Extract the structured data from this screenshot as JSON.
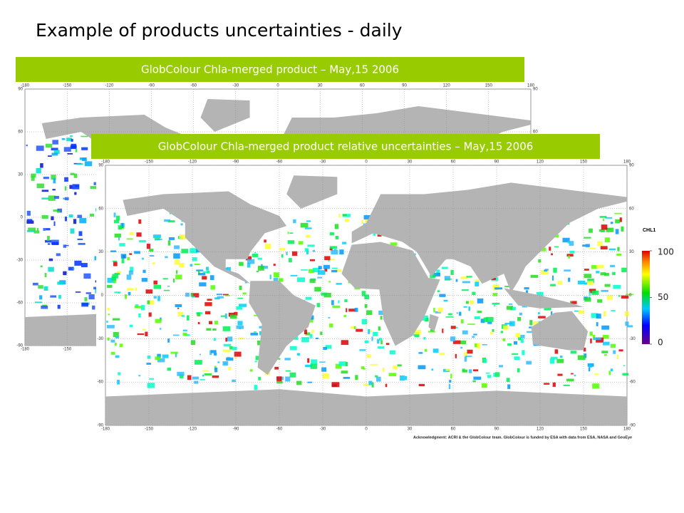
{
  "title": "Example of products uncertainties - daily",
  "panels": [
    {
      "banner": "GlobColour Chla-merged product – May,15 2006"
    },
    {
      "banner": "GlobColour Chla-merged product relative uncertainties – May,15 2006"
    }
  ],
  "map": {
    "lon_ticks": [
      -180,
      -150,
      -120,
      -90,
      -60,
      -30,
      0,
      30,
      60,
      90,
      120,
      150,
      180
    ],
    "lat_ticks": [
      90,
      60,
      30,
      0,
      -30,
      -60,
      -90
    ]
  },
  "colorbar": {
    "label": "CHL1",
    "ticks": [
      100,
      50,
      0
    ]
  },
  "acknowledgment": "Acknowledgment: ACRI & the GlobColour team. GlobColour is funded by ESA with data from ESA, NASA and GeoEye"
}
